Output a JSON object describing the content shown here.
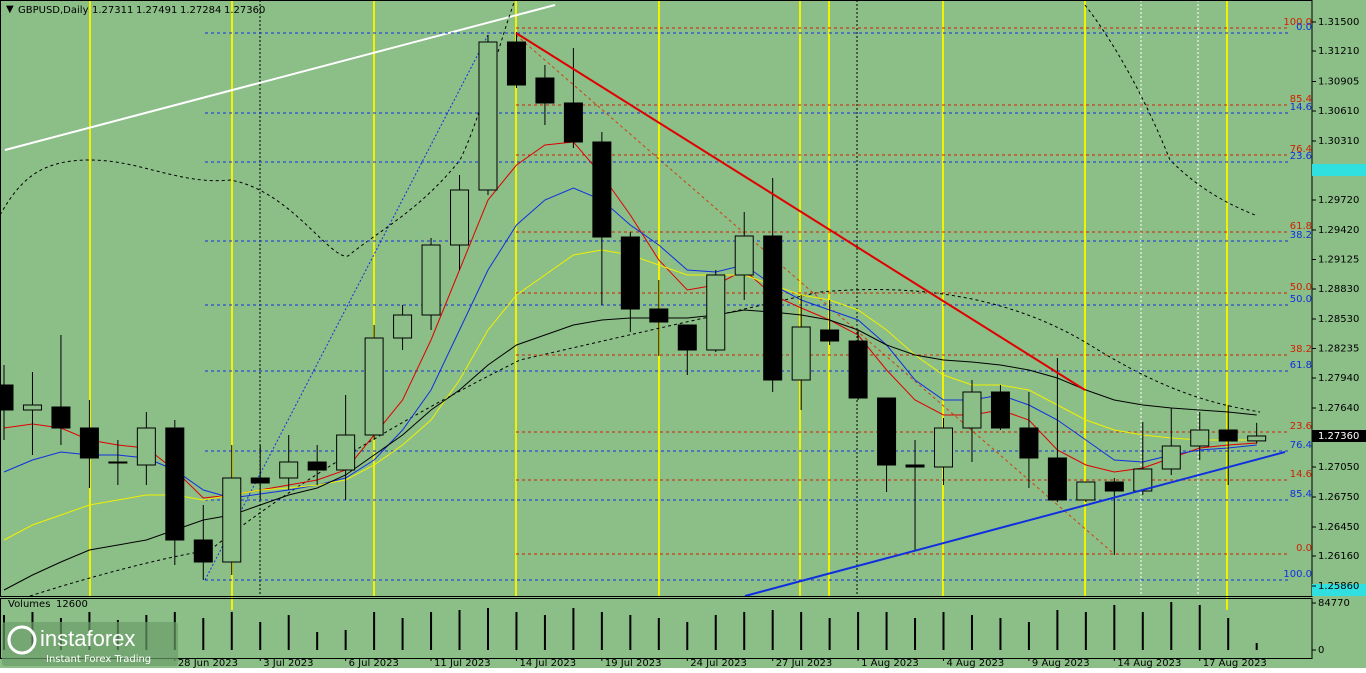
{
  "chart_data": {
    "type": "candlestick",
    "title": "GBPUSD,Daily",
    "header_prices": [
      "1.27311",
      "1.27491",
      "1.27284",
      "1.27360"
    ],
    "categories": [
      null,
      null,
      null,
      null,
      null,
      null,
      "28 Jun 2023",
      null,
      null,
      "3 Jul 2023",
      null,
      null,
      "6 Jul 2023",
      null,
      null,
      "11 Jul 2023",
      null,
      null,
      "14 Jul 2023",
      null,
      null,
      "19 Jul 2023",
      null,
      null,
      "24 Jul 2023",
      null,
      null,
      "27 Jul 2023",
      null,
      null,
      "1 Aug 2023",
      null,
      null,
      "4 Aug 2023",
      null,
      null,
      "9 Aug 2023",
      null,
      null,
      "14 Aug 2023",
      null,
      null,
      "17 Aug 2023",
      null,
      null
    ],
    "open": [
      1.2787,
      1.2762,
      1.2765,
      1.2744,
      1.271,
      1.2707,
      1.2744,
      1.2632,
      1.261,
      1.2694,
      1.2694,
      1.271,
      1.2702,
      1.2737,
      1.2834,
      1.2857,
      1.2927,
      1.2982,
      1.313,
      1.3094,
      1.3069,
      1.303,
      1.2935,
      1.2863,
      1.2847,
      1.2822,
      1.2897,
      1.2936,
      1.2792,
      1.2842,
      1.2831,
      1.2774,
      1.2707,
      1.2705,
      1.2744,
      1.278,
      1.2744,
      1.2714,
      1.2672,
      1.269,
      1.2681,
      1.2703,
      1.2726,
      1.2742,
      1.27311
    ],
    "high": [
      1.2807,
      1.28,
      1.2837,
      1.2772,
      1.2732,
      1.276,
      1.2752,
      1.2667,
      1.2727,
      1.2727,
      1.2737,
      1.2727,
      1.2777,
      1.2847,
      1.2867,
      1.2934,
      1.2997,
      1.3137,
      1.314,
      1.3107,
      1.3124,
      1.304,
      1.294,
      1.2892,
      1.2847,
      1.2902,
      1.296,
      1.2994,
      1.2877,
      1.2872,
      1.2842,
      1.2774,
      1.2732,
      1.2754,
      1.2792,
      1.2787,
      1.278,
      1.2814,
      1.269,
      1.2694,
      1.275,
      1.2764,
      1.276,
      1.2767,
      1.27491
    ],
    "low": [
      1.2732,
      1.2717,
      1.2727,
      1.2684,
      1.2687,
      1.2687,
      1.2607,
      1.2592,
      1.2597,
      1.2672,
      1.2682,
      1.2687,
      1.2672,
      1.2732,
      1.2822,
      1.2842,
      1.2902,
      1.2977,
      1.3084,
      1.3047,
      1.3024,
      1.2867,
      1.284,
      1.2816,
      1.2797,
      1.282,
      1.2872,
      1.278,
      1.2762,
      1.2827,
      1.2772,
      1.268,
      1.2622,
      1.2687,
      1.271,
      1.2742,
      1.2684,
      1.267,
      1.267,
      1.2617,
      1.2677,
      1.2697,
      1.2712,
      1.2687,
      1.27284
    ],
    "close": [
      1.2762,
      1.2767,
      1.2744,
      1.2714,
      1.2709,
      1.2744,
      1.2632,
      1.261,
      1.2694,
      1.2689,
      1.271,
      1.2702,
      1.2737,
      1.2834,
      1.2857,
      1.2927,
      1.2982,
      1.313,
      1.3087,
      1.3069,
      1.303,
      1.2935,
      1.2863,
      1.285,
      1.2822,
      1.2897,
      1.2936,
      1.2792,
      1.2845,
      1.2831,
      1.2774,
      1.2707,
      1.2705,
      1.2744,
      1.278,
      1.2744,
      1.2714,
      1.2672,
      1.269,
      1.2681,
      1.2703,
      1.2726,
      1.2742,
      1.2731,
      1.2736
    ],
    "series": [
      {
        "color": "#e00000",
        "values": [
          1.2744,
          1.2748,
          1.2744,
          1.2732,
          1.2727,
          1.2724,
          1.2702,
          1.2674,
          1.2677,
          1.2682,
          1.2687,
          1.2692,
          1.2702,
          1.2737,
          1.2772,
          1.2832,
          1.2902,
          1.2972,
          1.3007,
          1.3027,
          1.303,
          1.2997,
          1.2957,
          1.2912,
          1.2882,
          1.2887,
          1.2902,
          1.2877,
          1.2864,
          1.2852,
          1.2837,
          1.2802,
          1.2772,
          1.2757,
          1.2757,
          1.2762,
          1.2752,
          1.2722,
          1.2707,
          1.27,
          1.2704,
          1.2714,
          1.2724,
          1.2727,
          1.2729
        ]
      },
      {
        "color": "#1030e0",
        "values": [
          1.27,
          1.2712,
          1.272,
          1.2717,
          1.2717,
          1.2714,
          1.2702,
          1.2682,
          1.2674,
          1.2678,
          1.2682,
          1.2687,
          1.2694,
          1.2712,
          1.2742,
          1.2782,
          1.2842,
          1.2902,
          1.2947,
          1.2972,
          1.2984,
          1.2972,
          1.2947,
          1.2927,
          1.2902,
          1.29,
          1.2907,
          1.2887,
          1.2872,
          1.2862,
          1.2852,
          1.2827,
          1.2792,
          1.2772,
          1.2772,
          1.2777,
          1.2767,
          1.2752,
          1.2732,
          1.2712,
          1.271,
          1.2717,
          1.2722,
          1.2724,
          1.2727
        ]
      },
      {
        "color": "#f0f000",
        "values": [
          1.2632,
          1.2647,
          1.2657,
          1.2667,
          1.2672,
          1.2677,
          1.2677,
          1.2672,
          1.2677,
          1.2682,
          1.2684,
          1.2687,
          1.2692,
          1.2707,
          1.2727,
          1.2752,
          1.2792,
          1.2842,
          1.2877,
          1.2897,
          1.2917,
          1.2922,
          1.2917,
          1.2907,
          1.2897,
          1.2897,
          1.2897,
          1.2887,
          1.2877,
          1.2872,
          1.2862,
          1.2842,
          1.2817,
          1.2797,
          1.2787,
          1.2787,
          1.2782,
          1.2767,
          1.2752,
          1.2742,
          1.2737,
          1.2734,
          1.2732,
          1.2732,
          1.2732
        ]
      },
      {
        "color": "#000000",
        "values": [
          1.2582,
          1.2597,
          1.261,
          1.2622,
          1.2627,
          1.2632,
          1.2642,
          1.2652,
          1.2657,
          1.2667,
          1.2677,
          1.2684,
          1.2697,
          1.2717,
          1.2737,
          1.2762,
          1.2782,
          1.2807,
          1.2827,
          1.2837,
          1.2847,
          1.2852,
          1.2854,
          1.2854,
          1.2854,
          1.2857,
          1.2862,
          1.286,
          1.2857,
          1.2852,
          1.2842,
          1.2827,
          1.2817,
          1.2812,
          1.281,
          1.2807,
          1.2802,
          1.2794,
          1.2782,
          1.2772,
          1.2767,
          1.2764,
          1.2762,
          1.276,
          1.2757
        ]
      }
    ],
    "ylim": [
      1.2576,
      1.3172
    ],
    "yticks": [
      {
        "value": 1.315,
        "label": "1.31500"
      },
      {
        "value": 1.3121,
        "label": "1.31210"
      },
      {
        "value": 1.30905,
        "label": "1.30905"
      },
      {
        "value": 1.3061,
        "label": "1.30610"
      },
      {
        "value": 1.3031,
        "label": "1.30310"
      },
      {
        "value": 1.2972,
        "label": "1.29720"
      },
      {
        "value": 1.2942,
        "label": "1.29420"
      },
      {
        "value": 1.29125,
        "label": "1.29125"
      },
      {
        "value": 1.2883,
        "label": "1.28830"
      },
      {
        "value": 1.2853,
        "label": "1.28530"
      },
      {
        "value": 1.28235,
        "label": "1.28235"
      },
      {
        "value": 1.2794,
        "label": "1.27940"
      },
      {
        "value": 1.2764,
        "label": "1.27640"
      },
      {
        "value": 1.2705,
        "label": "1.27050"
      },
      {
        "value": 1.2675,
        "label": "1.26750"
      },
      {
        "value": 1.2645,
        "label": "1.26450"
      },
      {
        "value": 1.2616,
        "label": "1.26160"
      },
      {
        "value": 1.2586,
        "label": "1.25860"
      }
    ],
    "fib_red": [
      {
        "label": "100.0",
        "value": 1.3144
      },
      {
        "label": "85.4",
        "value": 1.3067
      },
      {
        "label": "76.4",
        "value": 1.3017
      },
      {
        "label": "61.8",
        "value": 1.294
      },
      {
        "label": "50.0",
        "value": 1.2879
      },
      {
        "label": "38.2",
        "value": 1.2817
      },
      {
        "label": "23.6",
        "value": 1.274
      },
      {
        "label": "14.6",
        "value": 1.2692
      },
      {
        "label": "0.0",
        "value": 1.2618
      }
    ],
    "fib_blue": [
      {
        "label": "0.0",
        "value": 1.3139
      },
      {
        "label": "14.6",
        "value": 1.3059
      },
      {
        "label": "23.6",
        "value": 1.301
      },
      {
        "label": "38.2",
        "value": 1.2931
      },
      {
        "label": "50.0",
        "value": 1.2867
      },
      {
        "label": "61.8",
        "value": 1.2801
      },
      {
        "label": "76.4",
        "value": 1.2721
      },
      {
        "label": "85.4",
        "value": 1.2672
      },
      {
        "label": "100.0",
        "value": 1.2592
      }
    ],
    "volume_label": "Volumes",
    "volumes": [
      63100,
      68500,
      57700,
      68500,
      54100,
      63100,
      68500,
      57700,
      68500,
      50500,
      63100,
      32500,
      36100,
      68500,
      57700,
      68500,
      72100,
      75800,
      68500,
      63100,
      75800,
      68500,
      63100,
      57700,
      50500,
      63100,
      68500,
      72100,
      68500,
      57700,
      68500,
      68500,
      57700,
      68500,
      63100,
      57700,
      50500,
      72100,
      68500,
      81200,
      68500,
      86600,
      81200,
      57700,
      12600
    ],
    "volume_ylim": [
      0,
      93790
    ],
    "volume_yticks": [
      0,
      84770
    ]
  },
  "branding": {
    "name": "instaforex",
    "tagline": "Instant Forex Trading"
  }
}
